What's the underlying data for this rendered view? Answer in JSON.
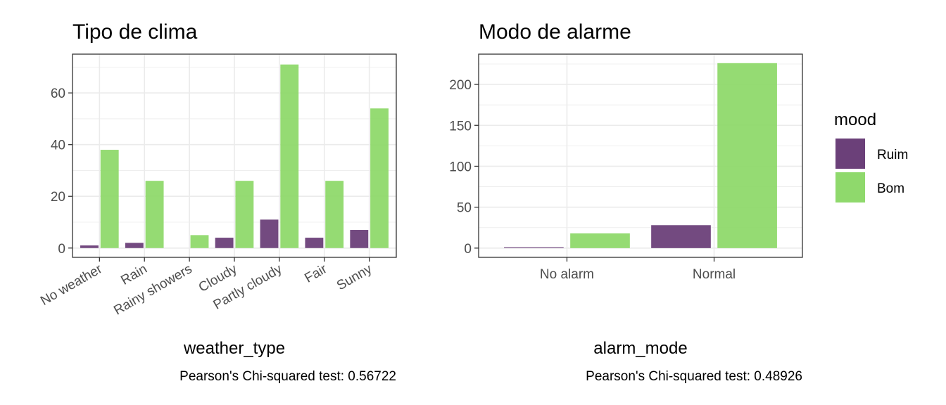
{
  "chart_data": [
    {
      "type": "bar",
      "title": "Tipo de clima",
      "xlabel": "weather_type",
      "ylabel": "",
      "caption": "Pearson's Chi-squared test: 0.56722",
      "categories": [
        "No weather",
        "Rain",
        "Rainy showers",
        "Cloudy",
        "Partly cloudy",
        "Fair",
        "Sunny"
      ],
      "series": [
        {
          "name": "Ruim",
          "values": [
            1,
            2,
            null,
            4,
            11,
            4,
            7
          ]
        },
        {
          "name": "Bom",
          "values": [
            38,
            26,
            5,
            26,
            71,
            26,
            54
          ]
        }
      ],
      "ylim": [
        -3.6,
        75
      ],
      "yticks": [
        0,
        20,
        40,
        60
      ],
      "grid": true,
      "xtick_rotation": 30
    },
    {
      "type": "bar",
      "title": "Modo de alarme",
      "xlabel": "alarm_mode",
      "ylabel": "",
      "caption": "Pearson's Chi-squared test: 0.48926",
      "categories": [
        "No alarm",
        "Normal"
      ],
      "series": [
        {
          "name": "Ruim",
          "values": [
            1,
            28
          ]
        },
        {
          "name": "Bom",
          "values": [
            18,
            226
          ]
        }
      ],
      "ylim": [
        -11.3,
        237
      ],
      "yticks": [
        0,
        50,
        100,
        150,
        200
      ],
      "grid": true,
      "xtick_rotation": 0
    }
  ],
  "legend": {
    "title": "mood",
    "placement": "right",
    "items": [
      {
        "label": "Ruim",
        "color": "#6B4079"
      },
      {
        "label": "Bom",
        "color": "#8FD96C"
      }
    ]
  },
  "colors": {
    "Ruim": "#6B4079",
    "Bom": "#8FD96C",
    "grid": "#EBEBEB",
    "panel_border": "#333333"
  }
}
